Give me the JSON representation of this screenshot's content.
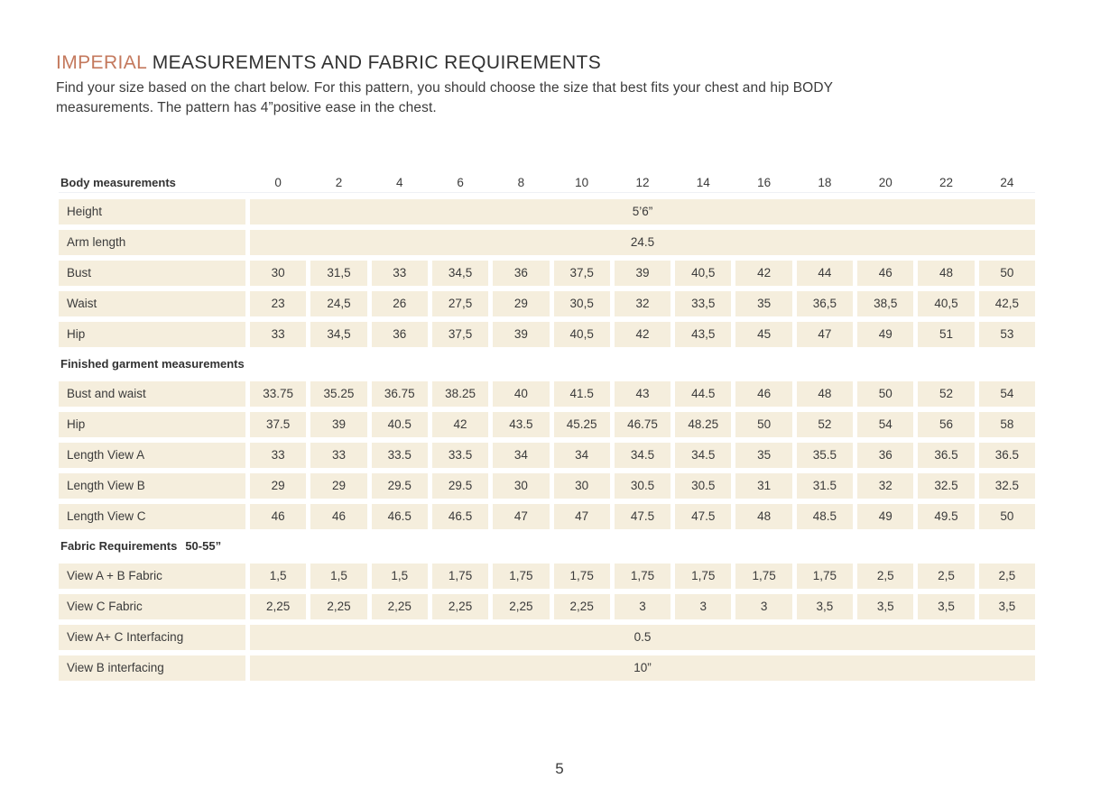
{
  "colors": {
    "accent": "#c4795d",
    "cell_background": "#f5eedd",
    "text": "#3a3a3a"
  },
  "title": {
    "accent": "IMPERIAL",
    "rest": " MEASUREMENTS AND FABRIC REQUIREMENTS"
  },
  "intro": {
    "line1": "Find your size based on the chart below. For this pattern, you should choose the size that best fits your chest and hip BODY",
    "line2": "measurements. The pattern has 4”positive ease in the chest."
  },
  "table": {
    "header": {
      "label": "Body measurements",
      "sizes": [
        "0",
        "2",
        "4",
        "6",
        "8",
        "10",
        "12",
        "14",
        "16",
        "18",
        "20",
        "22",
        "24"
      ]
    },
    "rows": [
      {
        "type": "merged",
        "label": "Height",
        "value": "5’6”"
      },
      {
        "type": "merged",
        "label": "Arm length",
        "value": "24.5"
      },
      {
        "type": "cells",
        "label": "Bust",
        "values": [
          "30",
          "31,5",
          "33",
          "34,5",
          "36",
          "37,5",
          "39",
          "40,5",
          "42",
          "44",
          "46",
          "48",
          "50"
        ]
      },
      {
        "type": "cells",
        "label": "Waist",
        "values": [
          "23",
          "24,5",
          "26",
          "27,5",
          "29",
          "30,5",
          "32",
          "33,5",
          "35",
          "36,5",
          "38,5",
          "40,5",
          "42,5"
        ]
      },
      {
        "type": "cells",
        "label": "Hip",
        "values": [
          "33",
          "34,5",
          "36",
          "37,5",
          "39",
          "40,5",
          "42",
          "43,5",
          "45",
          "47",
          "49",
          "51",
          "53"
        ]
      },
      {
        "type": "section",
        "label": "Finished garment measurements"
      },
      {
        "type": "cells",
        "label": "Bust and waist",
        "values": [
          "33.75",
          "35.25",
          "36.75",
          "38.25",
          "40",
          "41.5",
          "43",
          "44.5",
          "46",
          "48",
          "50",
          "52",
          "54"
        ]
      },
      {
        "type": "cells",
        "label": "Hip",
        "values": [
          "37.5",
          "39",
          "40.5",
          "42",
          "43.5",
          "45.25",
          "46.75",
          "48.25",
          "50",
          "52",
          "54",
          "56",
          "58"
        ]
      },
      {
        "type": "cells",
        "label": "Length View A",
        "values": [
          "33",
          "33",
          "33.5",
          "33.5",
          "34",
          "34",
          "34.5",
          "34.5",
          "35",
          "35.5",
          "36",
          "36.5",
          "36.5"
        ]
      },
      {
        "type": "cells",
        "label": "Length View B",
        "values": [
          "29",
          "29",
          "29.5",
          "29.5",
          "30",
          "30",
          "30.5",
          "30.5",
          "31",
          "31.5",
          "32",
          "32.5",
          "32.5"
        ]
      },
      {
        "type": "cells",
        "label": "Length View C",
        "values": [
          "46",
          "46",
          "46.5",
          "46.5",
          "47",
          "47",
          "47.5",
          "47.5",
          "48",
          "48.5",
          "49",
          "49.5",
          "50"
        ]
      },
      {
        "type": "section",
        "label": "Fabric Requirements",
        "suffix": "50-55”"
      },
      {
        "type": "cells",
        "label": "View A + B Fabric",
        "values": [
          "1,5",
          "1,5",
          "1,5",
          "1,75",
          "1,75",
          "1,75",
          "1,75",
          "1,75",
          "1,75",
          "1,75",
          "2,5",
          "2,5",
          "2,5"
        ]
      },
      {
        "type": "cells",
        "label": "View C Fabric",
        "values": [
          "2,25",
          "2,25",
          "2,25",
          "2,25",
          "2,25",
          "2,25",
          "3",
          "3",
          "3",
          "3,5",
          "3,5",
          "3,5",
          "3,5"
        ]
      },
      {
        "type": "merged",
        "label": "View A+ C Interfacing",
        "value": "0.5"
      },
      {
        "type": "merged",
        "label": "View B interfacing",
        "value": "10”"
      }
    ]
  },
  "footer": {
    "page_number": "5"
  }
}
